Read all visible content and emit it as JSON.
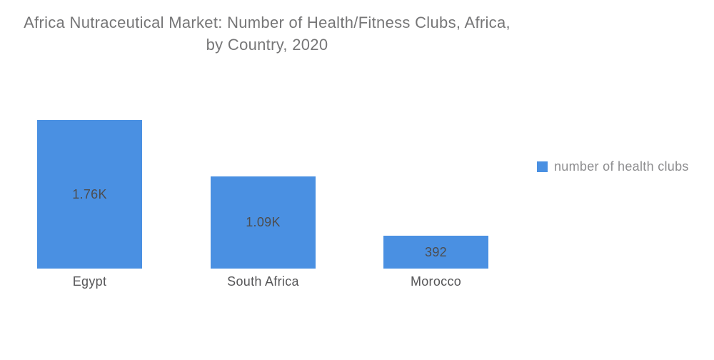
{
  "title": {
    "line1": "Africa Nutraceutical Market: Number of Health/Fitness Clubs, Africa,",
    "line2": "by Country, 2020"
  },
  "legend": {
    "label": "number of health clubs",
    "swatch_color": "#4a90e2"
  },
  "chart_data": {
    "type": "bar",
    "title": "Africa Nutraceutical Market: Number of Health/Fitness Clubs, Africa, by Country, 2020",
    "categories": [
      "Egypt",
      "South Africa",
      "Morocco"
    ],
    "series": [
      {
        "name": "number of health clubs",
        "values": [
          1760,
          1090,
          392
        ],
        "value_labels": [
          "1.76K",
          "1.09K",
          "392"
        ],
        "color": "#4a90e2"
      }
    ],
    "xlabel": "",
    "ylabel": "",
    "ylim": [
      0,
      1760
    ],
    "grid": false,
    "axes_visible": false,
    "value_label_position": "inside-center",
    "legend_position": "right"
  }
}
